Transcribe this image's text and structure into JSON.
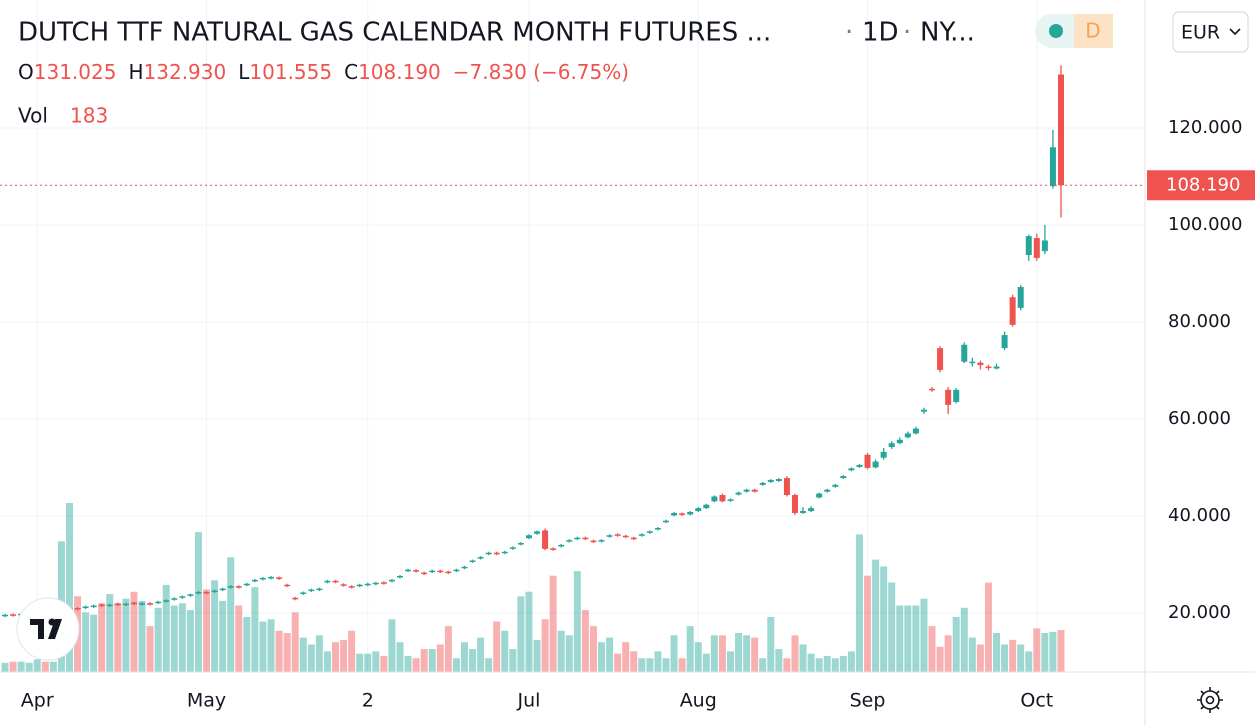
{
  "chart_data": {
    "type": "candlestick",
    "title": "DUTCH TTF NATURAL GAS CALENDAR MONTH FUTURES ...",
    "interval": "1D",
    "exchange": "NY...",
    "timeframe_badge": "D",
    "currency": "EUR",
    "legend": {
      "items": [
        {
          "label": "O",
          "value": "131.025"
        },
        {
          "label": "H",
          "value": "132.930"
        },
        {
          "label": "L",
          "value": "101.555"
        },
        {
          "label": "C",
          "value": "108.190"
        }
      ],
      "change": "−7.830 (−6.75%)"
    },
    "volume_label": "Vol",
    "up_color": "#26a69a",
    "down_color": "#ef5350",
    "grid": true,
    "ylim": [
      7.8,
      146.4
    ],
    "yticks": [
      {
        "value": 20,
        "label": "20.000"
      },
      {
        "value": 40,
        "label": "40.000"
      },
      {
        "value": 60,
        "label": "60.000"
      },
      {
        "value": 80,
        "label": "80.000"
      },
      {
        "value": 100,
        "label": "100.000"
      },
      {
        "value": 120,
        "label": "120.000"
      }
    ],
    "last_price": {
      "value": 108.19,
      "label": "108.190"
    },
    "categories": [
      null,
      null,
      null,
      null,
      "Apr",
      null,
      null,
      null,
      null,
      null,
      null,
      null,
      null,
      null,
      null,
      null,
      null,
      null,
      null,
      null,
      null,
      null,
      null,
      null,
      null,
      "May",
      null,
      null,
      null,
      null,
      null,
      null,
      null,
      null,
      null,
      null,
      null,
      null,
      null,
      null,
      null,
      null,
      null,
      null,
      null,
      "2",
      null,
      null,
      null,
      null,
      null,
      null,
      null,
      null,
      null,
      null,
      null,
      null,
      null,
      null,
      null,
      null,
      null,
      null,
      null,
      "Jul",
      null,
      null,
      null,
      null,
      null,
      null,
      null,
      null,
      null,
      null,
      null,
      null,
      null,
      null,
      null,
      null,
      null,
      null,
      null,
      null,
      "Aug",
      null,
      null,
      null,
      null,
      null,
      null,
      null,
      null,
      null,
      null,
      null,
      null,
      null,
      null,
      null,
      null,
      null,
      null,
      null,
      null,
      "Sep",
      null,
      null,
      null,
      null,
      null,
      null,
      null,
      null,
      null,
      null,
      null,
      null,
      null,
      null,
      null,
      null,
      null,
      null,
      null,
      null,
      "Oct",
      null,
      null,
      null
    ],
    "candles": [
      [
        19.3,
        19.8,
        19.1,
        19.6
      ],
      [
        19.7,
        19.9,
        19.2,
        19.4
      ],
      [
        19.5,
        20.0,
        19.3,
        19.8
      ],
      [
        19.7,
        20.2,
        19.5,
        20.0
      ],
      [
        20.0,
        20.5,
        19.8,
        20.3
      ],
      [
        20.3,
        20.5,
        19.8,
        20.0
      ],
      [
        20.2,
        20.7,
        20.0,
        20.5
      ],
      [
        20.5,
        21.0,
        20.3,
        20.8
      ],
      [
        20.7,
        21.2,
        20.5,
        21.0
      ],
      [
        21.0,
        21.2,
        20.5,
        20.7
      ],
      [
        21.0,
        21.5,
        20.8,
        21.3
      ],
      [
        21.2,
        21.7,
        21.0,
        21.5
      ],
      [
        21.7,
        21.9,
        21.2,
        21.4
      ],
      [
        21.4,
        21.9,
        21.2,
        21.7
      ],
      [
        21.9,
        22.1,
        21.4,
        21.6
      ],
      [
        21.6,
        22.1,
        21.4,
        21.9
      ],
      [
        22.1,
        22.3,
        21.6,
        21.8
      ],
      [
        21.7,
        22.2,
        21.5,
        22.0
      ],
      [
        22.0,
        22.2,
        21.5,
        21.7
      ],
      [
        22.0,
        22.5,
        21.8,
        22.3
      ],
      [
        22.3,
        22.8,
        22.1,
        22.6
      ],
      [
        22.7,
        23.2,
        22.5,
        23.0
      ],
      [
        23.1,
        23.6,
        22.9,
        23.4
      ],
      [
        23.5,
        24.0,
        23.3,
        23.8
      ],
      [
        24.0,
        24.5,
        23.8,
        24.3
      ],
      [
        24.3,
        24.5,
        23.8,
        24.0
      ],
      [
        24.3,
        24.8,
        24.1,
        24.6
      ],
      [
        24.7,
        25.2,
        24.5,
        25.0
      ],
      [
        25.2,
        25.7,
        25.0,
        25.5
      ],
      [
        25.5,
        25.7,
        25.0,
        25.2
      ],
      [
        25.7,
        26.2,
        25.5,
        26.0
      ],
      [
        26.5,
        27.0,
        26.3,
        26.8
      ],
      [
        26.9,
        27.4,
        26.7,
        27.2
      ],
      [
        27.1,
        27.6,
        26.9,
        27.4
      ],
      [
        27.3,
        27.5,
        26.8,
        27.0
      ],
      [
        25.8,
        26.0,
        25.3,
        25.5
      ],
      [
        23.1,
        23.3,
        22.6,
        22.8
      ],
      [
        23.9,
        24.4,
        23.7,
        24.2
      ],
      [
        24.5,
        25.0,
        24.3,
        24.8
      ],
      [
        24.7,
        25.2,
        24.5,
        25.0
      ],
      [
        26.3,
        26.8,
        26.1,
        26.6
      ],
      [
        26.6,
        26.8,
        26.1,
        26.3
      ],
      [
        25.9,
        26.1,
        25.4,
        25.6
      ],
      [
        25.5,
        25.7,
        25.0,
        25.2
      ],
      [
        25.5,
        26.0,
        25.3,
        25.8
      ],
      [
        25.7,
        26.2,
        25.5,
        26.0
      ],
      [
        25.9,
        26.4,
        25.7,
        26.2
      ],
      [
        26.3,
        26.5,
        25.8,
        26.0
      ],
      [
        26.5,
        27.0,
        26.3,
        26.8
      ],
      [
        27.3,
        27.8,
        27.1,
        27.6
      ],
      [
        28.6,
        29.1,
        28.4,
        28.9
      ],
      [
        28.8,
        29.0,
        28.3,
        28.5
      ],
      [
        28.3,
        28.5,
        27.8,
        28.0
      ],
      [
        28.4,
        28.9,
        28.2,
        28.7
      ],
      [
        28.7,
        28.9,
        28.2,
        28.4
      ],
      [
        28.5,
        28.7,
        28.0,
        28.2
      ],
      [
        28.6,
        29.1,
        28.4,
        28.9
      ],
      [
        29.2,
        29.7,
        29.0,
        29.5
      ],
      [
        30.5,
        31.0,
        30.3,
        30.8
      ],
      [
        31.2,
        31.7,
        31.0,
        31.5
      ],
      [
        32.1,
        32.6,
        31.9,
        32.4
      ],
      [
        32.4,
        32.6,
        31.9,
        32.1
      ],
      [
        32.3,
        32.8,
        32.1,
        32.6
      ],
      [
        33.2,
        33.7,
        33.0,
        33.5
      ],
      [
        34.1,
        34.6,
        33.9,
        34.4
      ],
      [
        35.4,
        36.2,
        35.2,
        36.0
      ],
      [
        36.3,
        37.0,
        36.1,
        36.8
      ],
      [
        37.0,
        37.4,
        32.9,
        33.2
      ],
      [
        33.3,
        33.5,
        32.8,
        33.0
      ],
      [
        33.7,
        34.2,
        33.5,
        34.0
      ],
      [
        34.7,
        35.2,
        34.5,
        35.0
      ],
      [
        35.2,
        35.7,
        35.0,
        35.5
      ],
      [
        35.5,
        35.7,
        35.0,
        35.2
      ],
      [
        34.9,
        35.1,
        34.4,
        34.6
      ],
      [
        34.7,
        35.2,
        34.5,
        35.0
      ],
      [
        35.7,
        36.2,
        35.5,
        36.0
      ],
      [
        36.2,
        36.4,
        35.7,
        35.9
      ],
      [
        35.9,
        36.1,
        35.4,
        35.6
      ],
      [
        35.5,
        35.7,
        35.0,
        35.2
      ],
      [
        35.9,
        36.4,
        35.7,
        36.2
      ],
      [
        36.5,
        37.0,
        36.3,
        36.8
      ],
      [
        37.2,
        37.7,
        37.0,
        37.5
      ],
      [
        38.7,
        39.2,
        38.5,
        39.0
      ],
      [
        40.1,
        40.8,
        39.9,
        40.6
      ],
      [
        40.5,
        40.7,
        40.0,
        40.2
      ],
      [
        40.3,
        41.0,
        40.1,
        40.8
      ],
      [
        41.0,
        41.8,
        40.8,
        41.6
      ],
      [
        41.6,
        42.5,
        41.4,
        42.3
      ],
      [
        43.0,
        44.2,
        42.8,
        44.0
      ],
      [
        44.3,
        44.6,
        42.8,
        43.0
      ],
      [
        43.1,
        43.6,
        42.9,
        43.4
      ],
      [
        44.4,
        45.0,
        44.2,
        44.8
      ],
      [
        45.0,
        45.6,
        44.8,
        45.4
      ],
      [
        45.4,
        45.6,
        44.8,
        45.0
      ],
      [
        46.4,
        47.0,
        46.2,
        46.8
      ],
      [
        47.0,
        47.6,
        46.8,
        47.4
      ],
      [
        47.2,
        47.8,
        47.0,
        47.6
      ],
      [
        47.8,
        48.2,
        44.0,
        44.3
      ],
      [
        44.3,
        44.6,
        40.2,
        40.6
      ],
      [
        40.6,
        41.8,
        40.4,
        41.0
      ],
      [
        41.0,
        42.0,
        40.8,
        41.6
      ],
      [
        43.8,
        44.8,
        43.6,
        44.6
      ],
      [
        45.0,
        45.6,
        44.8,
        45.4
      ],
      [
        46.0,
        46.6,
        45.8,
        46.4
      ],
      [
        47.8,
        48.4,
        47.6,
        48.2
      ],
      [
        49.4,
        50.0,
        49.2,
        49.8
      ],
      [
        50.1,
        50.7,
        49.9,
        50.5
      ],
      [
        52.6,
        53.0,
        49.6,
        49.9
      ],
      [
        50.0,
        51.6,
        49.8,
        51.2
      ],
      [
        52.0,
        54.0,
        51.6,
        53.2
      ],
      [
        54.2,
        55.4,
        53.8,
        55.0
      ],
      [
        55.0,
        56.2,
        54.8,
        55.7
      ],
      [
        56.2,
        57.4,
        56.0,
        57.0
      ],
      [
        57.0,
        58.4,
        56.8,
        58.0
      ],
      [
        61.5,
        62.3,
        61.0,
        61.9
      ],
      [
        66.2,
        66.6,
        65.6,
        66.0
      ],
      [
        74.6,
        75.0,
        69.6,
        70.1
      ],
      [
        66.0,
        66.6,
        61.0,
        62.9
      ],
      [
        63.5,
        66.4,
        63.2,
        66.0
      ],
      [
        71.8,
        75.8,
        71.5,
        75.3
      ],
      [
        71.6,
        72.6,
        70.8,
        71.8
      ],
      [
        71.6,
        72.0,
        70.2,
        71.1
      ],
      [
        70.8,
        71.2,
        70.0,
        70.5
      ],
      [
        70.4,
        71.4,
        70.2,
        70.8
      ],
      [
        74.6,
        78.0,
        74.2,
        77.3
      ],
      [
        85.1,
        85.6,
        79.0,
        79.4
      ],
      [
        82.9,
        87.6,
        82.4,
        87.2
      ],
      [
        93.8,
        98.0,
        92.6,
        97.7
      ],
      [
        97.3,
        98.2,
        92.6,
        93.2
      ],
      [
        94.6,
        100.0,
        94.0,
        96.8
      ],
      [
        108.0,
        119.6,
        107.5,
        116.02
      ],
      [
        131.025,
        132.93,
        101.555,
        108.19
      ]
    ],
    "volume": [
      40,
      45,
      45,
      40,
      55,
      45,
      45,
      570,
      737,
      330,
      260,
      250,
      300,
      340,
      300,
      320,
      350,
      310,
      200,
      280,
      380,
      290,
      300,
      270,
      610,
      360,
      400,
      310,
      500,
      290,
      240,
      370,
      220,
      230,
      180,
      170,
      260,
      150,
      120,
      160,
      90,
      130,
      140,
      180,
      80,
      80,
      90,
      70,
      230,
      130,
      70,
      60,
      100,
      100,
      120,
      200,
      60,
      130,
      100,
      150,
      60,
      220,
      180,
      100,
      330,
      350,
      140,
      230,
      420,
      180,
      160,
      440,
      270,
      200,
      130,
      150,
      80,
      130,
      90,
      60,
      60,
      90,
      60,
      160,
      60,
      200,
      130,
      80,
      160,
      160,
      90,
      170,
      160,
      150,
      60,
      240,
      100,
      60,
      160,
      120,
      80,
      60,
      70,
      60,
      70,
      90,
      600,
      420,
      490,
      460,
      390,
      290,
      290,
      290,
      320,
      200,
      110,
      160,
      240,
      280,
      150,
      120,
      390,
      170,
      120,
      140,
      120,
      90,
      190,
      170,
      175,
      183
    ]
  }
}
